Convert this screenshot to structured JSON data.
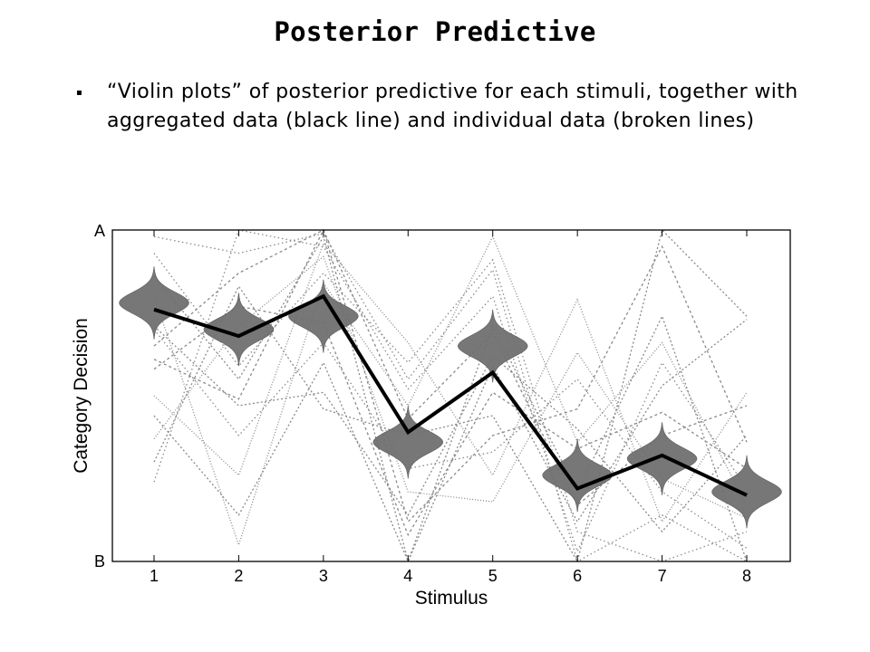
{
  "slide": {
    "title": "Posterior Predictive",
    "bullet_glyph": "▪",
    "bullet_text": "“Violin plots” of posterior predictive for each stimuli, together with aggregated data (black line) and individual data (broken lines)"
  },
  "chart_data": {
    "type": "line",
    "title": "",
    "xlabel": "Stimulus",
    "ylabel": "Category Decision",
    "categories": [
      "1",
      "2",
      "3",
      "4",
      "5",
      "6",
      "7",
      "8"
    ],
    "y_tick_labels": {
      "top": "A",
      "bottom": "B"
    },
    "ylim": [
      0,
      1
    ],
    "grid": false,
    "aggregated": {
      "values": [
        0.76,
        0.68,
        0.8,
        0.39,
        0.57,
        0.22,
        0.32,
        0.2
      ]
    },
    "violins": {
      "centers": [
        0.78,
        0.7,
        0.74,
        0.36,
        0.65,
        0.26,
        0.31,
        0.21
      ]
    },
    "individual": [
      {
        "values": [
          0.98,
          0.93,
          0.99,
          0.55,
          0.88,
          0.0,
          0.14,
          0.0
        ]
      },
      {
        "values": [
          0.86,
          0.55,
          0.98,
          0.0,
          0.59,
          0.12,
          0.53,
          0.73
        ]
      },
      {
        "values": [
          0.5,
          0.26,
          0.96,
          0.66,
          0.26,
          0.79,
          0.12,
          0.51
        ]
      },
      {
        "values": [
          0.65,
          0.87,
          1.0,
          0.12,
          0.38,
          0.46,
          0.95,
          0.36
        ]
      },
      {
        "values": [
          0.7,
          0.38,
          0.66,
          0.28,
          0.33,
          0.55,
          0.21,
          0.04
        ]
      },
      {
        "values": [
          0.44,
          0.14,
          0.6,
          0.0,
          0.71,
          0.21,
          0.74,
          0.0
        ]
      },
      {
        "values": [
          0.8,
          0.05,
          0.84,
          0.47,
          0.98,
          0.36,
          0.66,
          0.17
        ]
      },
      {
        "values": [
          0.58,
          0.77,
          0.72,
          0.08,
          0.51,
          0.34,
          0.45,
          0.28
        ]
      },
      {
        "values": [
          0.93,
          0.59,
          0.87,
          0.6,
          0.91,
          0.09,
          0.0,
          0.09
        ]
      },
      {
        "values": [
          0.3,
          0.83,
          0.46,
          0.38,
          0.44,
          0.0,
          1.0,
          0.74
        ]
      },
      {
        "values": [
          0.37,
          0.71,
          0.92,
          0.21,
          0.18,
          0.63,
          0.25,
          0.13
        ]
      },
      {
        "values": [
          0.61,
          0.49,
          1.0,
          0.43,
          0.69,
          0.17,
          0.38,
          0.47
        ]
      },
      {
        "values": [
          0.24,
          1.0,
          0.95,
          0.52,
          0.8,
          0.03,
          0.6,
          0.22
        ]
      },
      {
        "values": [
          0.71,
          0.47,
          0.51,
          0.14,
          0.62,
          0.4,
          0.09,
          0.38
        ]
      }
    ],
    "colors": {
      "aggregated": "#000000",
      "individual": "#8a8a8a",
      "violin": "#707070",
      "frame": "#000000",
      "text": "#000000"
    }
  }
}
